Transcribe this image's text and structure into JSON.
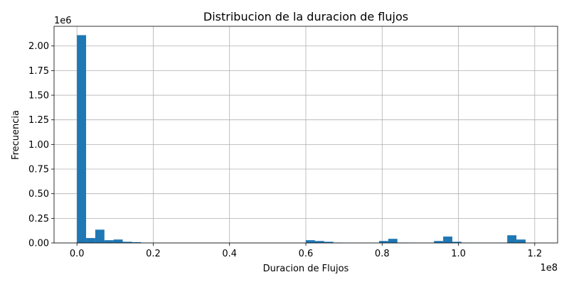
{
  "chart_data": {
    "type": "bar",
    "title": "Distribucion de la duracion de flujos",
    "xlabel": "Duracion de Flujos",
    "ylabel": "Frecuencia",
    "x_offset_label": "1e8",
    "y_offset_label": "1e6",
    "x_scale": 100000000,
    "y_scale": 1000000,
    "xlim": [
      -6000000,
      126000000
    ],
    "ylim": [
      0,
      2200000
    ],
    "x_ticks": [
      0,
      20000000,
      40000000,
      60000000,
      80000000,
      100000000,
      120000000
    ],
    "x_tick_labels": [
      "0.0",
      "0.2",
      "0.4",
      "0.6",
      "0.8",
      "1.0",
      "1.2"
    ],
    "y_ticks": [
      0,
      250000,
      500000,
      750000,
      1000000,
      1250000,
      1500000,
      1750000,
      2000000
    ],
    "y_tick_labels": [
      "0.00",
      "0.25",
      "0.50",
      "0.75",
      "1.00",
      "1.25",
      "1.50",
      "1.75",
      "2.00"
    ],
    "grid": true,
    "bar_color": "#1f77b4",
    "bin_start": 0,
    "bin_width": 2400000,
    "values": [
      2110000,
      50000,
      135000,
      28000,
      35000,
      12000,
      8000,
      3000,
      2000,
      1500,
      1200,
      1000,
      1000,
      1000,
      1000,
      1000,
      1000,
      1000,
      1000,
      1000,
      1000,
      1000,
      1000,
      1000,
      1000,
      28000,
      20000,
      12000,
      4000,
      2000,
      1500,
      1500,
      1500,
      20000,
      42000,
      4000,
      3000,
      2000,
      2000,
      20000,
      65000,
      12000,
      3000,
      2000,
      2000,
      2000,
      3000,
      78000,
      35000,
      0
    ]
  }
}
